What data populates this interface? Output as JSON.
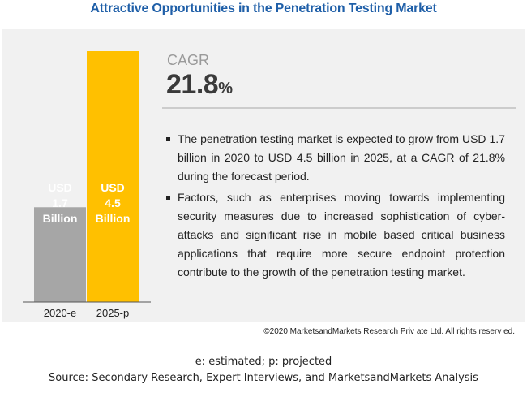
{
  "title": "Attractive Opportunities in the Penetration Testing Market",
  "cagr": {
    "label": "CAGR",
    "value": "21.8",
    "unit": "%"
  },
  "bullets": [
    "The penetration testing market is expected to grow from USD 1.7 billion in 2020 to USD 4.5 billion in 2025, at a CAGR of 21.8% during the forecast period.",
    "Factors, such as enterprises moving towards implementing security measures due to increased sophistication of cyber-attacks and significant rise in mobile based critical business applications that require more secure endpoint protection contribute to the growth of the penetration testing market."
  ],
  "copyright": "©2020 MarketsandMarkets Research Priv ate Ltd. All rights reserv ed.",
  "footnote": "e: estimated; p: projected",
  "source": "Source: Secondary Research, Expert Interviews, and MarketsandMarkets Analysis",
  "colors": {
    "bar_2020": "#a6a6a6",
    "bar_2025": "#ffc000",
    "title": "#1f5fa8"
  },
  "chart_data": {
    "type": "bar",
    "categories": [
      "2020-e",
      "2025-p"
    ],
    "values": [
      1.7,
      4.5
    ],
    "data_labels": [
      [
        "USD",
        "1.7",
        "Billion"
      ],
      [
        "USD",
        "4.5",
        "Billion"
      ]
    ],
    "ylim": [
      0,
      4.5
    ],
    "grid": false,
    "legend": false
  }
}
